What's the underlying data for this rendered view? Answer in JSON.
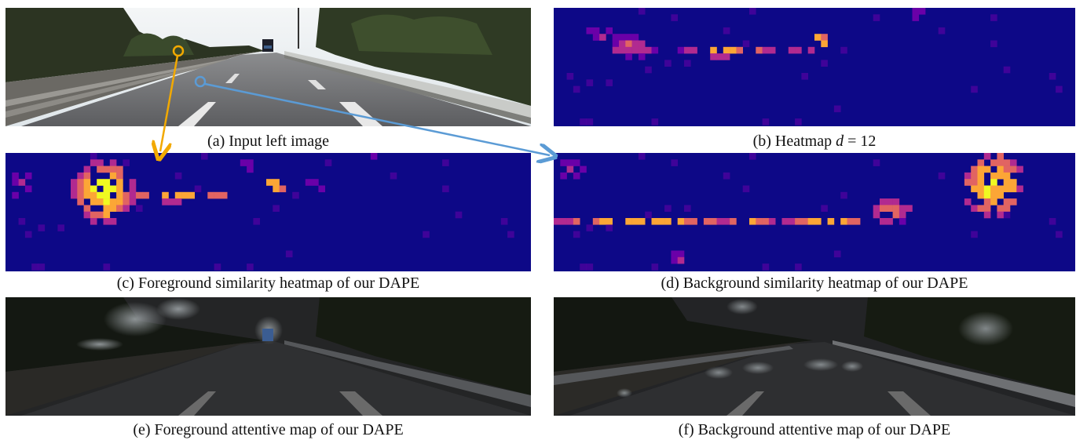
{
  "captions": {
    "a": "(a) Input left image",
    "b_prefix": "(b) Heatmap ",
    "b_var": "d",
    "b_suffix": " = 12",
    "c": "(c) Foreground similarity heatmap of our DAPE",
    "d": "(d) Background similarity heatmap of our DAPE",
    "e": "(e) Foreground attentive map of our DAPE",
    "f": "(f) Background attentive map of our DAPE"
  },
  "colors": {
    "heatmap_background": "#0d0887",
    "heatmap_low": "#6a00a8",
    "heatmap_mid": "#b12a90",
    "heatmap_high": "#e16462",
    "heatmap_peak": "#fca636",
    "heatmap_max": "#f0f921",
    "foreground_marker": "#f2a900",
    "background_marker": "#5b9bd5"
  }
}
